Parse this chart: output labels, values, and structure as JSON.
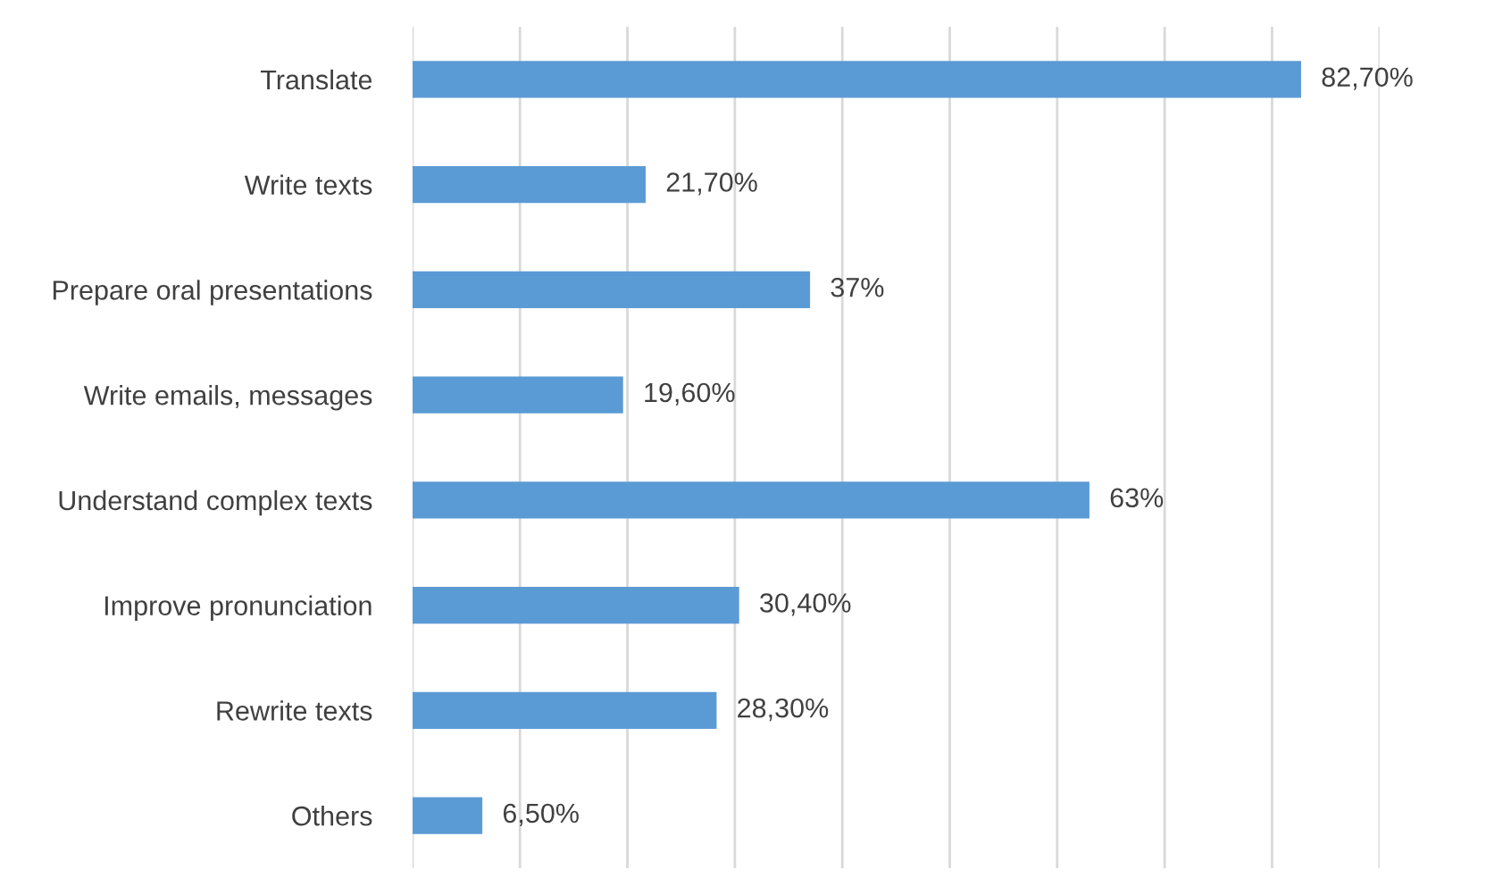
{
  "chart_data": {
    "type": "bar",
    "orientation": "horizontal",
    "categories": [
      "Translate",
      "Write texts",
      "Prepare oral presentations",
      "Write emails, messages",
      "Understand complex texts",
      "Improve pronunciation",
      "Rewrite texts",
      "Others"
    ],
    "values": [
      82.7,
      21.7,
      37,
      19.6,
      63,
      30.4,
      28.3,
      6.5
    ],
    "value_labels": [
      "82,70%",
      "21,70%",
      "37%",
      "19,60%",
      "63%",
      "30,40%",
      "28,30%",
      "6,50%"
    ],
    "color": "#5b9bd5",
    "xlim": [
      0,
      90
    ],
    "xticks": [
      {
        "value": 0,
        "label": null
      },
      {
        "value": 10,
        "label": null
      },
      {
        "value": 20,
        "label": null
      },
      {
        "value": 30,
        "label": null
      },
      {
        "value": 40,
        "label": null
      },
      {
        "value": 50,
        "label": null
      },
      {
        "value": 60,
        "label": null
      },
      {
        "value": 70,
        "label": null
      },
      {
        "value": 80,
        "label": null
      },
      {
        "value": 90,
        "label": null
      }
    ],
    "grid": "x",
    "tick_labels": "y"
  }
}
